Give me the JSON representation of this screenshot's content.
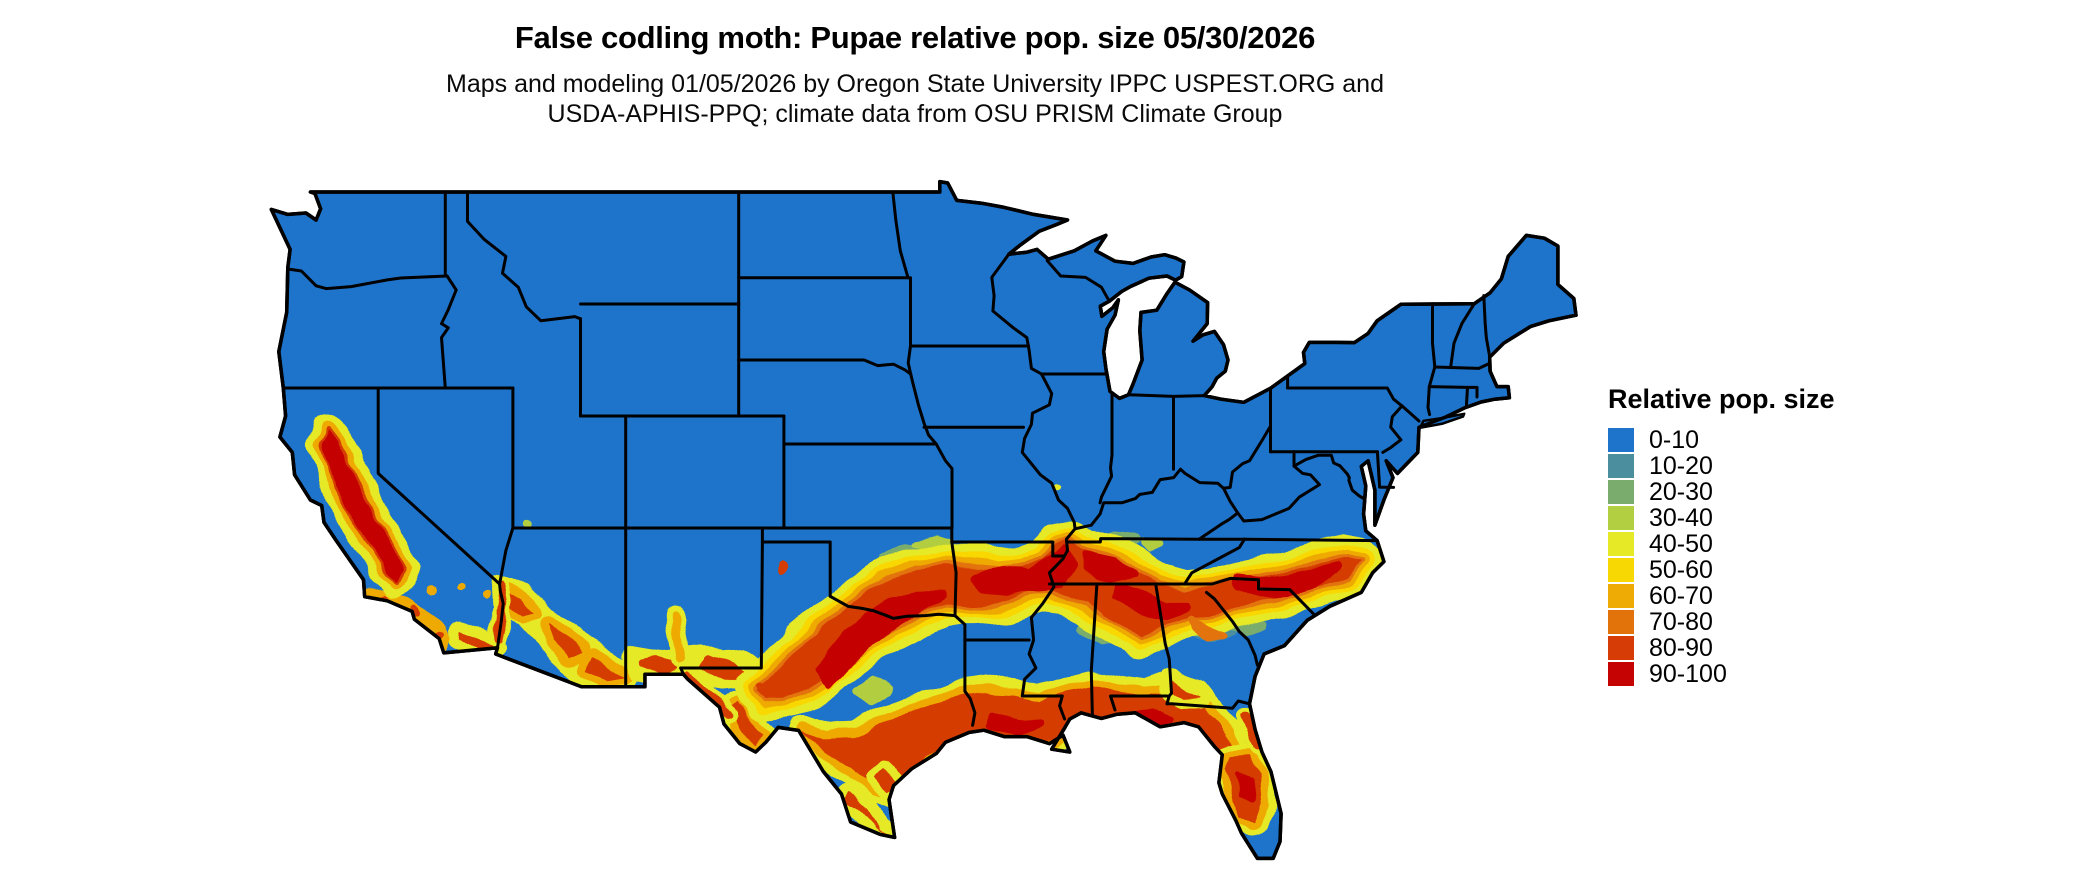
{
  "title": "False codling moth: Pupae relative pop. size 05/30/2026",
  "subtitle_line1": "Maps and modeling 01/05/2026 by Oregon State University IPPC USPEST.ORG and",
  "subtitle_line2": "USDA-APHIS-PPQ; climate data from OSU PRISM Climate Group",
  "legend": {
    "title": "Relative pop. size",
    "items": [
      {
        "label": "0-10",
        "color": "#1e74cb"
      },
      {
        "label": "10-20",
        "color": "#4b8f9e"
      },
      {
        "label": "20-30",
        "color": "#7aad6d"
      },
      {
        "label": "30-40",
        "color": "#b2ce41"
      },
      {
        "label": "40-50",
        "color": "#e6e926"
      },
      {
        "label": "50-60",
        "color": "#f8d802"
      },
      {
        "label": "60-70",
        "color": "#eeaa05"
      },
      {
        "label": "70-80",
        "color": "#e2730b"
      },
      {
        "label": "80-90",
        "color": "#d53c06"
      },
      {
        "label": "90-100",
        "color": "#c50303"
      }
    ]
  },
  "map": {
    "region_label": "Contiguous United States",
    "base_color": "#1e74cb",
    "border_color": "#000000",
    "background": "#ffffff"
  }
}
